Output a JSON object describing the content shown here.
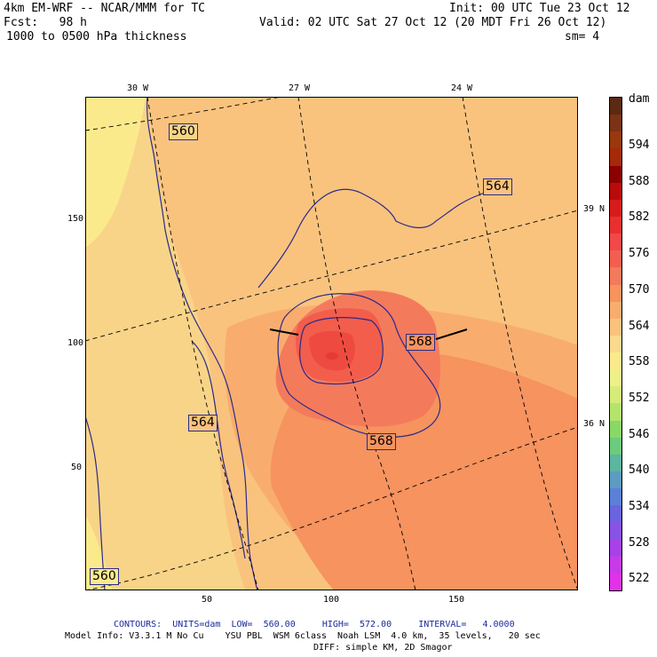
{
  "header": {
    "model": "4km EM-WRF -- NCAR/MMM for TC",
    "init": "Init: 00 UTC Tue 23 Oct 12",
    "fcst": "Fcst:   98 h",
    "valid": "Valid: 02 UTC Sat 27 Oct 12 (20 MDT Fri 26 Oct 12)",
    "field": "1000 to 0500 hPa thickness",
    "smooth": "sm= 4"
  },
  "map": {
    "lon_labels": [
      "30 W",
      "27 W",
      "24 W"
    ],
    "lat_labels": [
      "39 N",
      "36 N"
    ],
    "x_ticks": [
      "50",
      "100",
      "150"
    ],
    "y_ticks": [
      "150",
      "100",
      "50"
    ],
    "contour_labels": [
      "560",
      "564",
      "568",
      "564",
      "568",
      "560"
    ]
  },
  "colorbar": {
    "unit": "dam",
    "levels": [
      "594",
      "588",
      "582",
      "576",
      "570",
      "564",
      "558",
      "552",
      "546",
      "540",
      "534",
      "528",
      "522"
    ],
    "colors": [
      "#5a2a12",
      "#7a3315",
      "#98380e",
      "#a52a0a",
      "#8b0000",
      "#b80c0c",
      "#d61c1c",
      "#e83030",
      "#f24848",
      "#f45e50",
      "#f47a5c",
      "#f6935f",
      "#f8ad6e",
      "#f9c37e",
      "#fbd98e",
      "#fbea8c",
      "#eef08a",
      "#d6ec7a",
      "#b4e46e",
      "#8ad866",
      "#6ccb7e",
      "#5cb6a0",
      "#5c9cc0",
      "#5c80d8",
      "#6a64e0",
      "#8a52e4",
      "#a842e8",
      "#c83ae8",
      "#e232e8"
    ]
  },
  "footer": {
    "contours_label": "CONTOURS:",
    "contours_units": "UNITS=dam",
    "contours_low": "LOW=  560.00",
    "contours_high": "HIGH=  572.00",
    "contours_interval": "INTERVAL=   4.0000",
    "model_info": "Model Info: V3.3.1 M No Cu    YSU PBL  WSM 6class  Noah LSM  4.0 km,  35 levels,   20 sec",
    "diff": "DIFF: simple KM, 2D Smagor"
  }
}
